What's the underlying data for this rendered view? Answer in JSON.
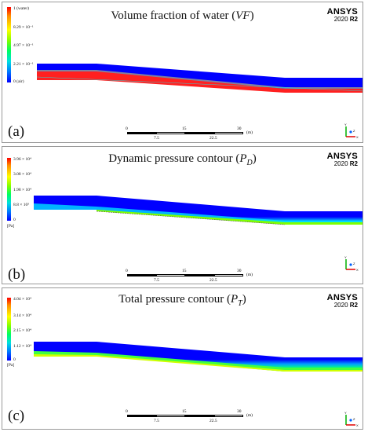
{
  "panels": [
    {
      "label": "(a)",
      "title_pre": "Volume fraction of water (",
      "title_var": "VF",
      "title_sub": "",
      "title_post": ")",
      "legend_labels": [
        "1 (water)",
        "8.29 × 10⁻¹",
        "4.97 × 10⁻¹",
        "2.21 × 10⁻¹",
        "0 (air)"
      ],
      "legend_unit": ""
    },
    {
      "label": "(b)",
      "title_pre": "Dynamic pressure contour (",
      "title_var": "P",
      "title_sub": "D",
      "title_post": ")",
      "legend_labels": [
        "3.96 × 10⁴",
        "3.08 × 10⁴",
        "1.98 × 10⁴",
        "8.8 × 10³",
        "0"
      ],
      "legend_unit": "[Pa]"
    },
    {
      "label": "(c)",
      "title_pre": "Total pressure contour (",
      "title_var": "P",
      "title_sub": "T",
      "title_post": ")",
      "legend_labels": [
        "4.04 × 10⁴",
        "3.14 × 10⁴",
        "2.15 × 10⁴",
        "1.12 × 10⁴",
        "0"
      ],
      "legend_unit": "[Pa]"
    }
  ],
  "brand": {
    "name": "ANSYS",
    "version": "2020",
    "release": "R2"
  },
  "scale": {
    "top_labels": [
      "0",
      "15",
      "30"
    ],
    "bottom_labels": [
      "7.5",
      "22.5"
    ],
    "unit": "(m)"
  },
  "triad": {
    "x": "X",
    "y": "Y",
    "z": "Z"
  },
  "colors": {
    "water": "#0000ff",
    "high": "#ff0000",
    "mid": "#00ff00",
    "low": "#00c8ff"
  }
}
